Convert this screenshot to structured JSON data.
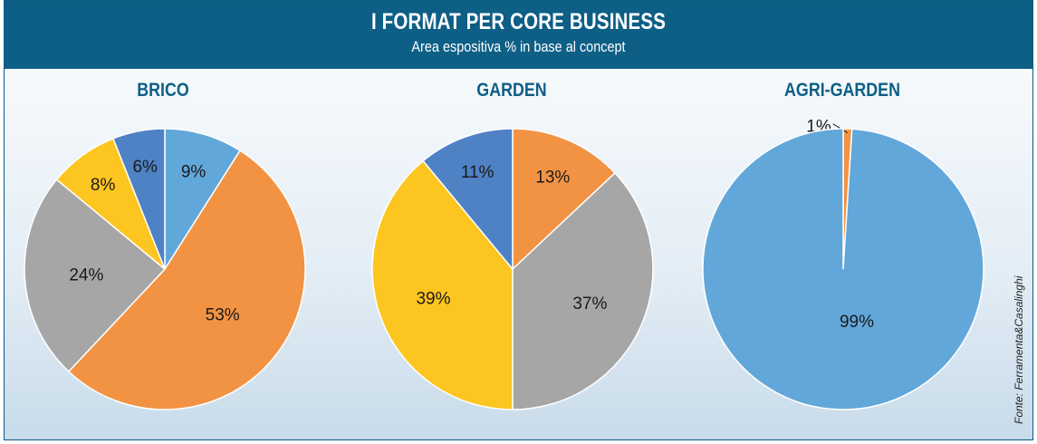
{
  "header": {
    "title": "I FORMAT PER CORE BUSINESS",
    "subtitle": "Area espositiva % in base al concept"
  },
  "source": "Fonte: Ferramenta&Casalinghi",
  "colors": {
    "header_bg": "#0d5f86",
    "light_blue": "#62a7da",
    "orange": "#f29344",
    "gray": "#a6a6a6",
    "yellow": "#fdc51f",
    "dark_blue": "#4f81c5"
  },
  "chart_data": [
    {
      "type": "pie",
      "title": "BRICO",
      "slices": [
        {
          "value": 9,
          "label": "9%",
          "color": "#62a7da"
        },
        {
          "value": 53,
          "label": "53%",
          "color": "#f29344"
        },
        {
          "value": 24,
          "label": "24%",
          "color": "#a6a6a6"
        },
        {
          "value": 8,
          "label": "8%",
          "color": "#fdc51f"
        },
        {
          "value": 6,
          "label": "6%",
          "color": "#4f81c5"
        }
      ]
    },
    {
      "type": "pie",
      "title": "GARDEN",
      "slices": [
        {
          "value": 13,
          "label": "13%",
          "color": "#f29344"
        },
        {
          "value": 37,
          "label": "37%",
          "color": "#a6a6a6"
        },
        {
          "value": 39,
          "label": "39%",
          "color": "#fdc51f"
        },
        {
          "value": 11,
          "label": "11%",
          "color": "#4f81c5"
        }
      ]
    },
    {
      "type": "pie",
      "title": "AGRI-GARDEN",
      "slices": [
        {
          "value": 1,
          "label": "1%",
          "color": "#f29344"
        },
        {
          "value": 99,
          "label": "99%",
          "color": "#62a7da"
        }
      ]
    }
  ]
}
